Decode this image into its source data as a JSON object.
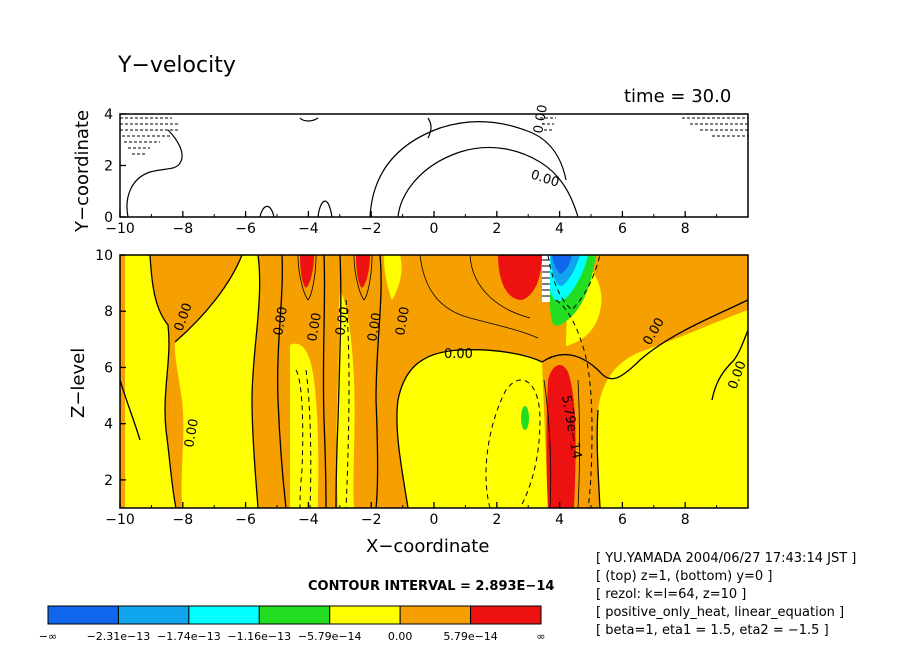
{
  "title": "Y−velocity",
  "time_label": "time = 30.0",
  "contour_interval": "CONTOUR INTERVAL = 2.893E−14",
  "info_lines": [
    "[ YU.YAMADA 2004/06/27 17:43:14 JST ]",
    "[ (top) z=1, (bottom) y=0 ]",
    "[ rezol: k=l=64, z=10 ]",
    "[ positive_only_heat, linear_equation ]",
    "[ beta=1, eta1 = 1.5, eta2 = −1.5 ]"
  ],
  "colors": {
    "red": "#ee1111",
    "orange": "#f5a000",
    "yellow": "#ffff00",
    "green": "#22dd22",
    "cyan": "#00ffff",
    "lightblue": "#11a5ee",
    "blue": "#1166ee"
  },
  "chart_data": [
    {
      "type": "contour",
      "panel": "top",
      "xlabel": "",
      "ylabel": "Y−coordinate",
      "xlim": [
        -10,
        10
      ],
      "ylim": [
        0,
        4
      ],
      "x_ticks": [
        "−10",
        "−8",
        "−6",
        "−4",
        "−2",
        "0",
        "2",
        "4",
        "6",
        "8"
      ],
      "y_ticks": [
        "0",
        "2",
        "4"
      ],
      "contour_labels": [
        "0.00",
        "0.00"
      ]
    },
    {
      "type": "contour",
      "panel": "bottom",
      "xlabel": "X−coordinate",
      "ylabel": "Z−level",
      "xlim": [
        -10,
        10
      ],
      "ylim": [
        1,
        10
      ],
      "x_ticks": [
        "−10",
        "−8",
        "−6",
        "−4",
        "−2",
        "0",
        "2",
        "4",
        "6",
        "8"
      ],
      "y_ticks": [
        "2",
        "4",
        "6",
        "8",
        "10"
      ],
      "contour_labels": [
        "0.00",
        "0.00",
        "0.00",
        "0.00",
        "0.00",
        "0.00",
        "0.00",
        "0.00",
        "0.00",
        "5.79e−14"
      ],
      "contour_interval": 2.893e-14
    }
  ],
  "colorbar": {
    "labels": [
      "−∞",
      "−2.31e−13",
      "−1.74e−13",
      "−1.16e−13",
      "−5.79e−14",
      "0.00",
      "5.79e−14",
      "∞"
    ],
    "colors": [
      "#1166ee",
      "#11a5ee",
      "#00ffff",
      "#22dd22",
      "#ffff00",
      "#f5a000",
      "#ee1111"
    ]
  }
}
